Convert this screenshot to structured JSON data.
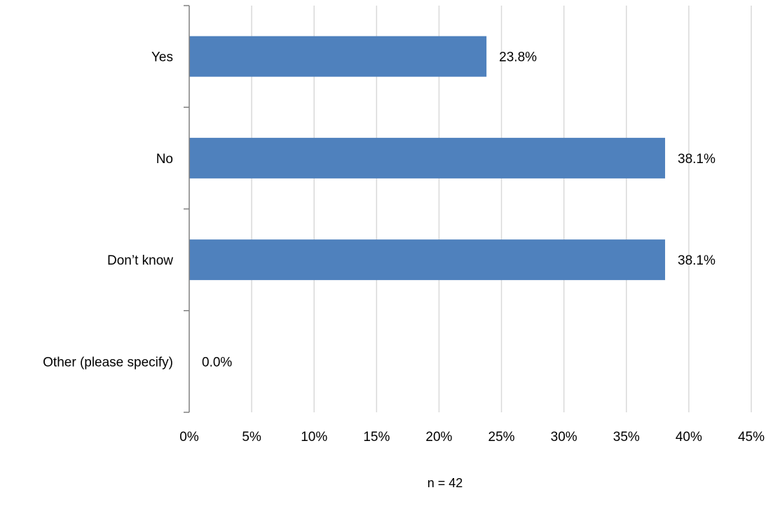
{
  "chart_data": {
    "type": "bar",
    "orientation": "horizontal",
    "categories": [
      "Yes",
      "No",
      "Don’t know",
      "Other (please specify)"
    ],
    "values": [
      23.8,
      38.1,
      38.1,
      0.0
    ],
    "data_labels": [
      "23.8%",
      "38.1%",
      "38.1%",
      "0.0%"
    ],
    "xlim": [
      0,
      45
    ],
    "x_ticks": [
      0,
      5,
      10,
      15,
      20,
      25,
      30,
      35,
      40,
      45
    ],
    "x_tick_labels": [
      "0%",
      "5%",
      "10%",
      "15%",
      "20%",
      "25%",
      "30%",
      "35%",
      "40%",
      "45%"
    ],
    "grid": true,
    "legend": "none",
    "bar_color": "#4F81BD",
    "grid_color": "#D9D9D9",
    "axis_color": "#808080",
    "note": "n = 42"
  }
}
